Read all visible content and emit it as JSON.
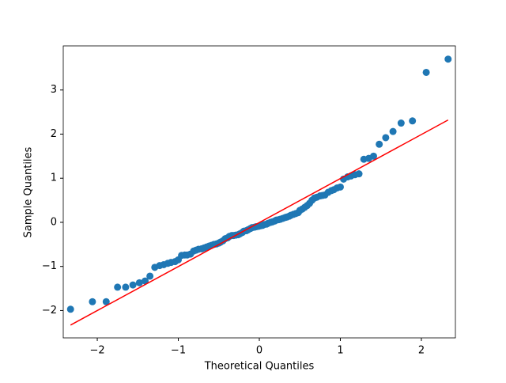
{
  "chart_data": {
    "type": "scatter",
    "xlabel": "Theoretical Quantiles",
    "ylabel": "Sample Quantiles",
    "xlim": [
      -2.42,
      2.42
    ],
    "ylim": [
      -2.62,
      4.0
    ],
    "xticks": [
      {
        "value": -2,
        "label": "−2"
      },
      {
        "value": -1,
        "label": "−1"
      },
      0,
      1,
      2
    ],
    "yticks": [
      {
        "value": -2,
        "label": "−2"
      },
      {
        "value": -1,
        "label": "−1"
      },
      0,
      1,
      2,
      3
    ],
    "series": [
      {
        "color": "#1f77b4",
        "x": [
          -2.33,
          -2.06,
          -1.89,
          -1.75,
          -1.65,
          -1.56,
          -1.48,
          -1.41,
          -1.35,
          -1.29,
          -1.23,
          -1.18,
          -1.13,
          -1.09,
          -1.04,
          -1.0,
          -0.96,
          -0.92,
          -0.89,
          -0.85,
          -0.81,
          -0.78,
          -0.75,
          -0.71,
          -0.68,
          -0.65,
          -0.62,
          -0.59,
          -0.56,
          -0.53,
          -0.5,
          -0.48,
          -0.45,
          -0.42,
          -0.39,
          -0.37,
          -0.34,
          -0.32,
          -0.29,
          -0.26,
          -0.24,
          -0.21,
          -0.19,
          -0.16,
          -0.14,
          -0.11,
          -0.09,
          -0.06,
          -0.04,
          -0.01,
          0.01,
          0.04,
          0.06,
          0.09,
          0.11,
          0.14,
          0.16,
          0.19,
          0.21,
          0.24,
          0.26,
          0.29,
          0.32,
          0.34,
          0.37,
          0.39,
          0.42,
          0.45,
          0.48,
          0.5,
          0.53,
          0.56,
          0.59,
          0.62,
          0.65,
          0.68,
          0.71,
          0.75,
          0.78,
          0.81,
          0.85,
          0.89,
          0.92,
          0.96,
          1.0,
          1.04,
          1.09,
          1.13,
          1.18,
          1.23,
          1.29,
          1.35,
          1.41,
          1.48,
          1.56,
          1.65,
          1.75,
          1.89,
          2.06,
          2.33
        ],
        "values": [
          -1.97,
          -1.8,
          -1.8,
          -1.47,
          -1.47,
          -1.42,
          -1.37,
          -1.33,
          -1.22,
          -1.02,
          -0.98,
          -0.96,
          -0.93,
          -0.91,
          -0.89,
          -0.85,
          -0.75,
          -0.74,
          -0.74,
          -0.72,
          -0.65,
          -0.63,
          -0.61,
          -0.6,
          -0.58,
          -0.56,
          -0.54,
          -0.52,
          -0.5,
          -0.49,
          -0.47,
          -0.45,
          -0.42,
          -0.37,
          -0.35,
          -0.32,
          -0.3,
          -0.3,
          -0.29,
          -0.28,
          -0.26,
          -0.23,
          -0.2,
          -0.19,
          -0.17,
          -0.14,
          -0.12,
          -0.11,
          -0.1,
          -0.09,
          -0.08,
          -0.07,
          -0.05,
          -0.04,
          -0.02,
          0.0,
          0.01,
          0.03,
          0.05,
          0.06,
          0.07,
          0.09,
          0.11,
          0.12,
          0.14,
          0.16,
          0.18,
          0.2,
          0.22,
          0.27,
          0.3,
          0.34,
          0.38,
          0.43,
          0.5,
          0.55,
          0.57,
          0.6,
          0.61,
          0.62,
          0.68,
          0.72,
          0.74,
          0.78,
          0.8,
          0.98,
          1.03,
          1.05,
          1.08,
          1.1,
          1.43,
          1.45,
          1.5,
          1.77,
          1.92,
          2.06,
          2.25,
          2.3,
          3.4,
          3.7
        ]
      }
    ],
    "line": {
      "color": "red",
      "x": [
        -2.33,
        2.33
      ],
      "y": [
        -2.33,
        2.32
      ]
    }
  }
}
